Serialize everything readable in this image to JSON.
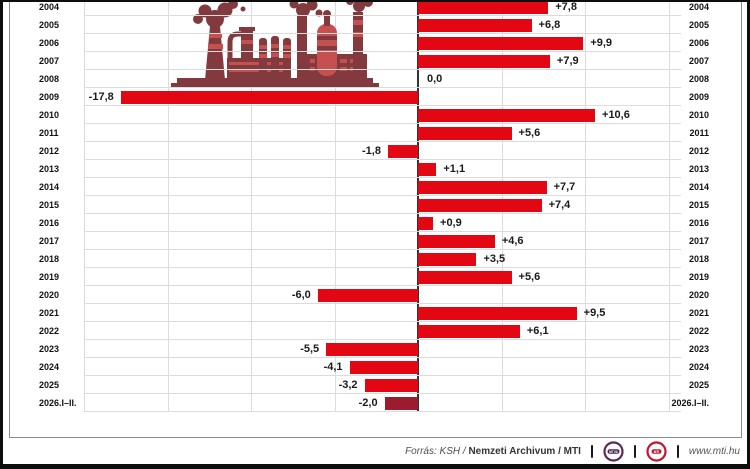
{
  "chart_data": {
    "type": "bar",
    "orientation": "horizontal",
    "title": "",
    "categories": [
      "2004",
      "2005",
      "2006",
      "2007",
      "2008",
      "2009",
      "2010",
      "2011",
      "2012",
      "2013",
      "2014",
      "2015",
      "2016",
      "2017",
      "2018",
      "2019",
      "2020",
      "2021",
      "2022",
      "2023",
      "2024",
      "2025",
      "2026.I–II."
    ],
    "values": [
      7.8,
      6.8,
      9.9,
      7.9,
      0.0,
      -17.8,
      10.6,
      5.6,
      -1.8,
      1.1,
      7.7,
      7.4,
      0.9,
      4.6,
      3.5,
      5.6,
      -6.0,
      9.5,
      6.1,
      -5.5,
      -4.1,
      -3.2,
      -2.0
    ],
    "value_labels": [
      "+7,8",
      "+6,8",
      "+9,9",
      "+7,9",
      "0,0",
      "-17,8",
      "+10,6",
      "+5,6",
      "-1,8",
      "+1,1",
      "+7,7",
      "+7,4",
      "+0,9",
      "+4,6",
      "+3,5",
      "+5,6",
      "-6,0",
      "+9,5",
      "+6,1",
      "-5,5",
      "-4,1",
      "-3,2",
      "-2,0"
    ],
    "xlim": [
      -20,
      17.5
    ],
    "gridline_step": 5,
    "grid": true,
    "legend": "none",
    "highlight_last": true,
    "year_labels_both_sides": true
  },
  "colors": {
    "bar": "#e30613",
    "bar_highlight": "#9b1c2e",
    "axis": "#333333",
    "gridline": "#dcdcdc",
    "frame": "#8c8c8c",
    "border": "#0d0d0d",
    "factory_dark": "#833a3e",
    "factory_bright": "#c4504f",
    "mtva_logo": "#5b2b57",
    "mti_logo": "#c41431"
  },
  "icons": {
    "factory_illustration": "industrial-plant-silhouette-with-smokestacks",
    "mtva_logo": "mtva-circular-emblem",
    "mti_logo": "mti-circular-emblem"
  },
  "footer": {
    "source_italic": "Forrás: KSH /",
    "source_bold": "Nemzeti Archivum",
    "source_suffix": "/ MTI",
    "mtva_logo_text": "MTVA",
    "mti_logo_text": "MTI",
    "website": "www.mti.hu"
  }
}
